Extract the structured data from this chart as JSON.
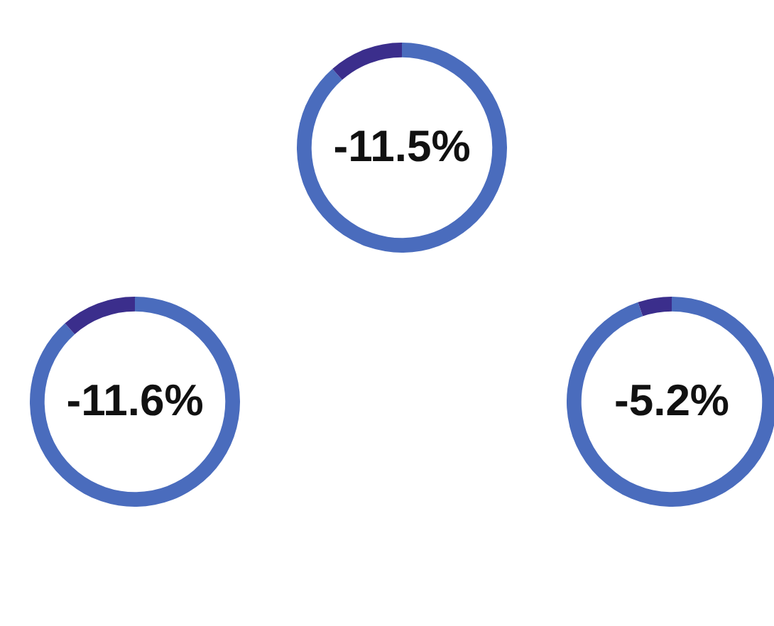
{
  "chart_data": [
    {
      "type": "donut",
      "categories": [
        null,
        null
      ],
      "values": [
        88.5,
        11.5
      ],
      "colors": [
        "#4a6cbd",
        "#3b2e8c"
      ],
      "annotations": [
        "-11.5%"
      ],
      "legend": false
    },
    {
      "type": "donut",
      "categories": [
        null,
        null
      ],
      "values": [
        88.4,
        11.6
      ],
      "colors": [
        "#4a6cbd",
        "#3b2e8c"
      ],
      "annotations": [
        "-11.6%"
      ],
      "legend": false
    },
    {
      "type": "donut",
      "categories": [
        null,
        null
      ],
      "values": [
        94.8,
        5.2
      ],
      "colors": [
        "#4a6cbd",
        "#3b2e8c"
      ],
      "annotations": [
        "-5.2%"
      ],
      "legend": false
    }
  ]
}
